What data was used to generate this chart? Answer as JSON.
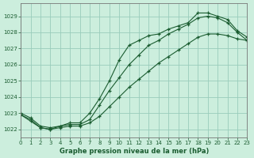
{
  "title": "Graphe pression niveau de la mer (hPa)",
  "bg_color": "#cceedd",
  "grid_color": "#99ccbb",
  "line_color": "#1a5c30",
  "x_min": 0,
  "x_max": 23,
  "y_min": 1021.5,
  "y_max": 1029.8,
  "y_ticks": [
    1022,
    1023,
    1024,
    1025,
    1026,
    1027,
    1028,
    1029
  ],
  "x_ticks": [
    0,
    1,
    2,
    3,
    4,
    5,
    6,
    7,
    8,
    9,
    10,
    11,
    12,
    13,
    14,
    15,
    16,
    17,
    18,
    19,
    20,
    21,
    22,
    23
  ],
  "line1_x": [
    0,
    1,
    2,
    3,
    4,
    5,
    6,
    7,
    8,
    9,
    10,
    11,
    12,
    13,
    14,
    15,
    16,
    17,
    18,
    19,
    20,
    21,
    22,
    23
  ],
  "line1_y": [
    1023.0,
    1022.7,
    1022.2,
    1022.1,
    1022.2,
    1022.4,
    1022.4,
    1023.0,
    1023.9,
    1025.0,
    1026.3,
    1027.2,
    1027.5,
    1027.8,
    1027.9,
    1028.2,
    1028.4,
    1028.6,
    1029.2,
    1029.2,
    1029.0,
    1028.8,
    1028.1,
    1027.7
  ],
  "line2_x": [
    0,
    1,
    2,
    3,
    4,
    5,
    6,
    7,
    8,
    9,
    10,
    11,
    12,
    13,
    14,
    15,
    16,
    17,
    18,
    19,
    20,
    21,
    22,
    23
  ],
  "line2_y": [
    1022.9,
    1022.6,
    1022.1,
    1022.0,
    1022.2,
    1022.3,
    1022.3,
    1022.6,
    1023.5,
    1024.4,
    1025.2,
    1026.0,
    1026.6,
    1027.2,
    1027.5,
    1027.9,
    1028.2,
    1028.5,
    1028.9,
    1029.0,
    1028.9,
    1028.6,
    1028.0,
    1027.5
  ],
  "line3_x": [
    0,
    1,
    2,
    3,
    4,
    5,
    6,
    7,
    8,
    9,
    10,
    11,
    12,
    13,
    14,
    15,
    16,
    17,
    18,
    19,
    20,
    21,
    22,
    23
  ],
  "line3_y": [
    1022.9,
    1022.5,
    1022.1,
    1022.0,
    1022.1,
    1022.2,
    1022.2,
    1022.4,
    1022.8,
    1023.4,
    1024.0,
    1024.6,
    1025.1,
    1025.6,
    1026.1,
    1026.5,
    1026.9,
    1027.3,
    1027.7,
    1027.9,
    1027.9,
    1027.8,
    1027.6,
    1027.5
  ]
}
